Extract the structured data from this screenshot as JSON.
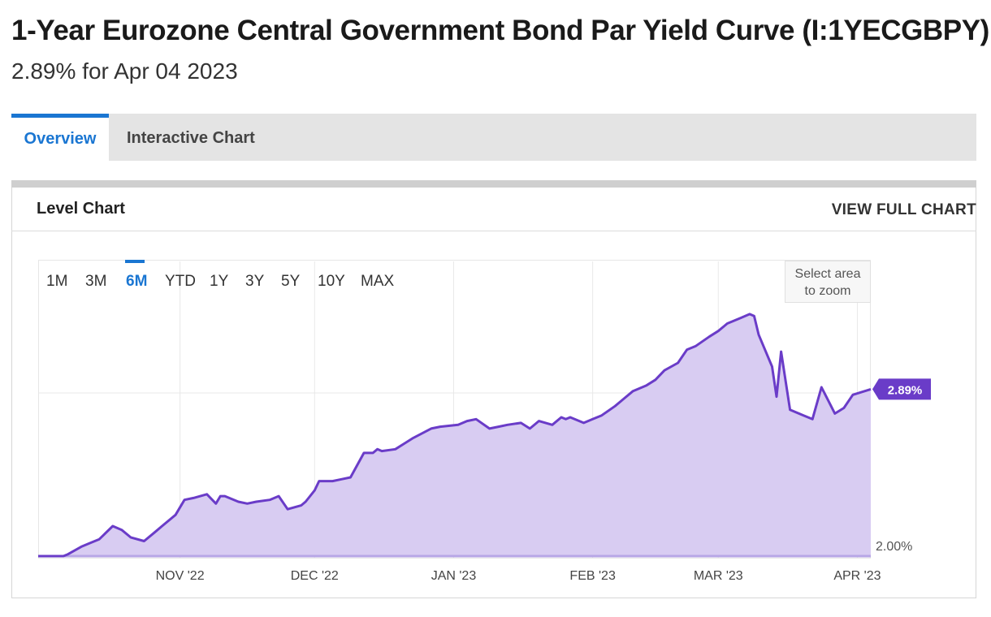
{
  "header": {
    "title": "1-Year Eurozone Central Government Bond Par Yield Curve (I:1YECGBPY)",
    "subtitle": "2.89% for Apr 04 2023"
  },
  "tabs": [
    {
      "label": "Overview",
      "active": true
    },
    {
      "label": "Interactive Chart",
      "active": false
    }
  ],
  "card": {
    "title": "Level Chart",
    "view_full_label": "VIEW FULL CHART"
  },
  "range_buttons": [
    "1M",
    "3M",
    "6M",
    "YTD",
    "1Y",
    "3Y",
    "5Y",
    "10Y",
    "MAX"
  ],
  "active_range": "6M",
  "zoom_hint": {
    "line1": "Select area",
    "line2": "to zoom"
  },
  "colors": {
    "line": "#6a3cc8",
    "fill": "#d8ccf2",
    "accent": "#1a76d2",
    "badge": "#6a3cc8"
  },
  "chart_data": {
    "type": "area",
    "y_unit": "%",
    "current_value_label": "2.89%",
    "y_tick_labels": [
      "2.00%"
    ],
    "x_tick_labels": [
      "NOV '22",
      "DEC '22",
      "JAN '23",
      "FEB '23",
      "MAR '23",
      "APR '23"
    ],
    "ylim": [
      2.0,
      3.32
    ],
    "grid": true,
    "x": [
      "2022-10-04",
      "2022-10-06",
      "2022-10-07",
      "2022-10-10",
      "2022-10-12",
      "2022-10-14",
      "2022-10-17",
      "2022-10-19",
      "2022-10-21",
      "2022-10-24",
      "2022-10-26",
      "2022-10-27",
      "2022-10-28",
      "2022-10-31",
      "2022-11-02",
      "2022-11-04",
      "2022-11-07",
      "2022-11-09",
      "2022-11-10",
      "2022-11-11",
      "2022-11-14",
      "2022-11-16",
      "2022-11-18",
      "2022-11-21",
      "2022-11-23",
      "2022-11-25",
      "2022-11-28",
      "2022-11-29",
      "2022-12-01",
      "2022-12-02",
      "2022-12-05",
      "2022-12-07",
      "2022-12-09",
      "2022-12-12",
      "2022-12-14",
      "2022-12-15",
      "2022-12-16",
      "2022-12-19",
      "2022-12-21",
      "2022-12-23",
      "2022-12-27",
      "2022-12-29",
      "2023-01-02",
      "2023-01-04",
      "2023-01-06",
      "2023-01-09",
      "2023-01-11",
      "2023-01-13",
      "2023-01-16",
      "2023-01-18",
      "2023-01-20",
      "2023-01-23",
      "2023-01-25",
      "2023-01-26",
      "2023-01-27",
      "2023-01-30",
      "2023-02-01",
      "2023-02-03",
      "2023-02-06",
      "2023-02-08",
      "2023-02-10",
      "2023-02-13",
      "2023-02-15",
      "2023-02-17",
      "2023-02-20",
      "2023-02-22",
      "2023-02-24",
      "2023-02-27",
      "2023-03-01",
      "2023-03-03",
      "2023-03-06",
      "2023-03-08",
      "2023-03-09",
      "2023-03-10",
      "2023-03-13",
      "2023-03-14",
      "2023-03-15",
      "2023-03-17",
      "2023-03-20",
      "2023-03-22",
      "2023-03-24",
      "2023-03-27",
      "2023-03-29",
      "2023-03-31",
      "2023-04-04"
    ],
    "series": [
      {
        "values": [
          2.0,
          2.0,
          2.01,
          2.05,
          2.07,
          2.09,
          2.16,
          2.14,
          2.1,
          2.08,
          2.12,
          2.14,
          2.16,
          2.22,
          2.3,
          2.31,
          2.33,
          2.28,
          2.32,
          2.32,
          2.29,
          2.28,
          2.29,
          2.3,
          2.32,
          2.25,
          2.27,
          2.29,
          2.35,
          2.4,
          2.4,
          2.41,
          2.42,
          2.55,
          2.55,
          2.57,
          2.56,
          2.57,
          2.6,
          2.63,
          2.68,
          2.69,
          2.7,
          2.72,
          2.73,
          2.68,
          2.69,
          2.7,
          2.71,
          2.68,
          2.72,
          2.7,
          2.74,
          2.73,
          2.74,
          2.71,
          2.73,
          2.75,
          2.8,
          2.84,
          2.88,
          2.91,
          2.94,
          2.99,
          3.03,
          3.1,
          3.12,
          3.17,
          3.2,
          3.24,
          3.27,
          3.29,
          3.28,
          3.18,
          3.01,
          2.85,
          3.09,
          2.78,
          2.75,
          2.73,
          2.9,
          2.76,
          2.79,
          2.86,
          2.89
        ]
      }
    ]
  }
}
